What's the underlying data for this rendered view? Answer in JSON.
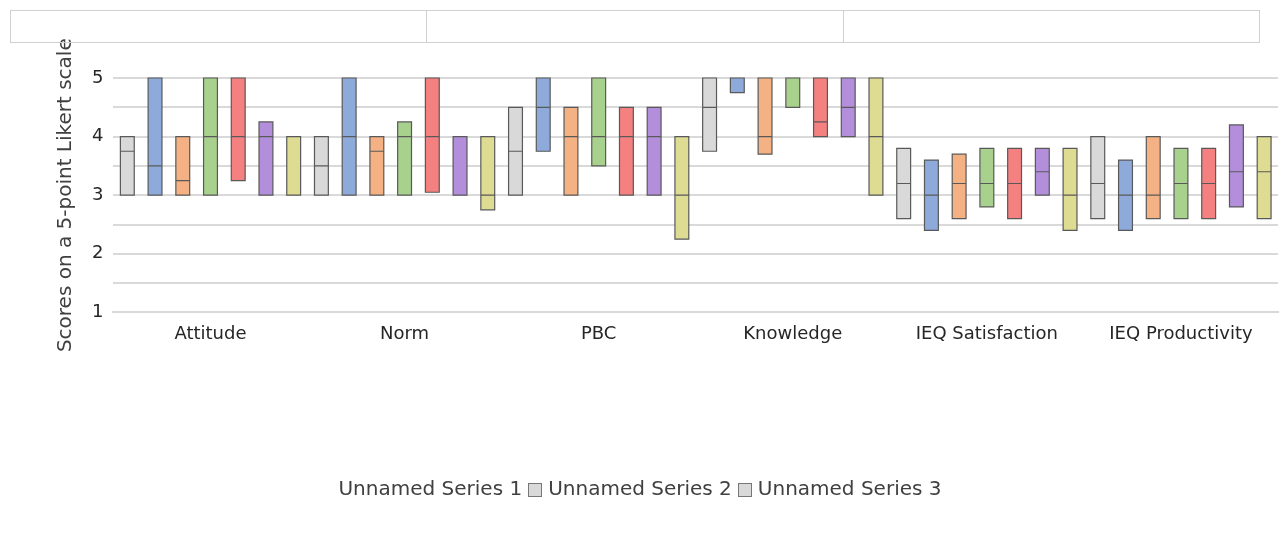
{
  "chart_data": {
    "type": "box",
    "ylabel": "Scores on a 5-point Likert scale",
    "categories": [
      "Attitude",
      "Norm",
      "PBC",
      "Knowledge",
      "IEQ Satisfaction",
      "IEQ Productivity"
    ],
    "ylim": [
      1,
      5
    ],
    "yticks": [
      1,
      {
        "value": 1.5,
        "label": null
      },
      2,
      {
        "value": 2.5,
        "label": null
      },
      3,
      {
        "value": 3.5,
        "label": null
      },
      4,
      {
        "value": 4.5,
        "label": null
      },
      5
    ],
    "grid": "y",
    "legend": false,
    "annotations": [
      "Unnamed Series 1",
      "Unnamed Series 2",
      "Unnamed Series 3"
    ],
    "series": [
      {
        "color": "#d9d9d9",
        "boxes": [
          {
            "low": 3,
            "q1": 3,
            "median": 3.75,
            "q3": 4,
            "high": 4
          },
          {
            "low": 3,
            "q1": 3,
            "median": 3.5,
            "q3": 4,
            "high": 4
          },
          {
            "low": 3,
            "q1": 3,
            "median": 3.75,
            "q3": 4.5,
            "high": 4.5
          },
          {
            "low": 3.75,
            "q1": 3.75,
            "median": 4.5,
            "q3": 5,
            "high": 5
          },
          {
            "low": 2.6,
            "q1": 2.6,
            "median": 3.2,
            "q3": 3.8,
            "high": 3.8
          },
          {
            "low": 2.6,
            "q1": 2.6,
            "median": 3.2,
            "q3": 4,
            "high": 4
          }
        ]
      },
      {
        "color": "#8eaadb",
        "boxes": [
          {
            "low": 3,
            "q1": 3,
            "median": 3.5,
            "q3": 5,
            "high": 5
          },
          {
            "low": 3,
            "q1": 3,
            "median": 4,
            "q3": 5,
            "high": 5
          },
          {
            "low": 3.75,
            "q1": 3.75,
            "median": 4.5,
            "q3": 5,
            "high": 5
          },
          {
            "low": 4.75,
            "q1": 4.75,
            "median": 5,
            "q3": 5,
            "high": 5
          },
          {
            "low": 2.4,
            "q1": 2.4,
            "median": 3,
            "q3": 3.6,
            "high": 3.6
          },
          {
            "low": 2.4,
            "q1": 2.4,
            "median": 3,
            "q3": 3.6,
            "high": 3.6
          }
        ]
      },
      {
        "color": "#f4b183",
        "boxes": [
          {
            "low": 3,
            "q1": 3,
            "median": 3.25,
            "q3": 4,
            "high": 4
          },
          {
            "low": 3,
            "q1": 3,
            "median": 3.75,
            "q3": 4,
            "high": 4
          },
          {
            "low": 3,
            "q1": 3,
            "median": 4,
            "q3": 4.5,
            "high": 4.5
          },
          {
            "low": 3.7,
            "q1": 3.7,
            "median": 4,
            "q3": 5,
            "high": 5
          },
          {
            "low": 2.6,
            "q1": 2.6,
            "median": 3.2,
            "q3": 3.7,
            "high": 3.7
          },
          {
            "low": 2.6,
            "q1": 2.6,
            "median": 3,
            "q3": 4,
            "high": 4
          }
        ]
      },
      {
        "color": "#a9d18e",
        "boxes": [
          {
            "low": 3,
            "q1": 3,
            "median": 4,
            "q3": 5,
            "high": 5
          },
          {
            "low": 3,
            "q1": 3,
            "median": 4,
            "q3": 4.25,
            "high": 4.25
          },
          {
            "low": 3.5,
            "q1": 3.5,
            "median": 4,
            "q3": 5,
            "high": 5
          },
          {
            "low": 4.5,
            "q1": 4.5,
            "median": 5,
            "q3": 5,
            "high": 5
          },
          {
            "low": 2.8,
            "q1": 2.8,
            "median": 3.2,
            "q3": 3.8,
            "high": 3.8
          },
          {
            "low": 2.6,
            "q1": 2.6,
            "median": 3.2,
            "q3": 3.8,
            "high": 3.8
          }
        ]
      },
      {
        "color": "#f4817f",
        "boxes": [
          {
            "low": 3.25,
            "q1": 3.25,
            "median": 4,
            "q3": 5,
            "high": 5
          },
          {
            "low": 3.05,
            "q1": 3.05,
            "median": 4,
            "q3": 5,
            "high": 5
          },
          {
            "low": 3,
            "q1": 3,
            "median": 4,
            "q3": 4.5,
            "high": 4.5
          },
          {
            "low": 4,
            "q1": 4,
            "median": 4.25,
            "q3": 5,
            "high": 5
          },
          {
            "low": 2.6,
            "q1": 2.6,
            "median": 3.2,
            "q3": 3.8,
            "high": 3.8
          },
          {
            "low": 2.6,
            "q1": 2.6,
            "median": 3.2,
            "q3": 3.8,
            "high": 3.8
          }
        ]
      },
      {
        "color": "#b38fdb",
        "boxes": [
          {
            "low": 3,
            "q1": 3,
            "median": 4,
            "q3": 4.25,
            "high": 4.25
          },
          {
            "low": 3,
            "q1": 3,
            "median": 3,
            "q3": 4,
            "high": 4
          },
          {
            "low": 3,
            "q1": 3,
            "median": 4,
            "q3": 4.5,
            "high": 4.5
          },
          {
            "low": 4,
            "q1": 4,
            "median": 4.5,
            "q3": 5,
            "high": 5
          },
          {
            "low": 3,
            "q1": 3,
            "median": 3.4,
            "q3": 3.8,
            "high": 3.8
          },
          {
            "low": 2.8,
            "q1": 2.8,
            "median": 3.4,
            "q3": 4.2,
            "high": 4.2
          }
        ]
      },
      {
        "color": "#dedb93",
        "boxes": [
          {
            "low": 3,
            "q1": 3,
            "median": 3,
            "q3": 4,
            "high": 4
          },
          {
            "low": 2.75,
            "q1": 2.75,
            "median": 3,
            "q3": 4,
            "high": 4
          },
          {
            "low": 2.25,
            "q1": 2.25,
            "median": 3,
            "q3": 4,
            "high": 4
          },
          {
            "low": 3,
            "q1": 3,
            "median": 4,
            "q3": 5,
            "high": 5
          },
          {
            "low": 2.4,
            "q1": 2.4,
            "median": 3,
            "q3": 3.8,
            "high": 3.8
          },
          {
            "low": 2.6,
            "q1": 2.6,
            "median": 3.4,
            "q3": 4,
            "high": 4
          }
        ]
      }
    ]
  }
}
